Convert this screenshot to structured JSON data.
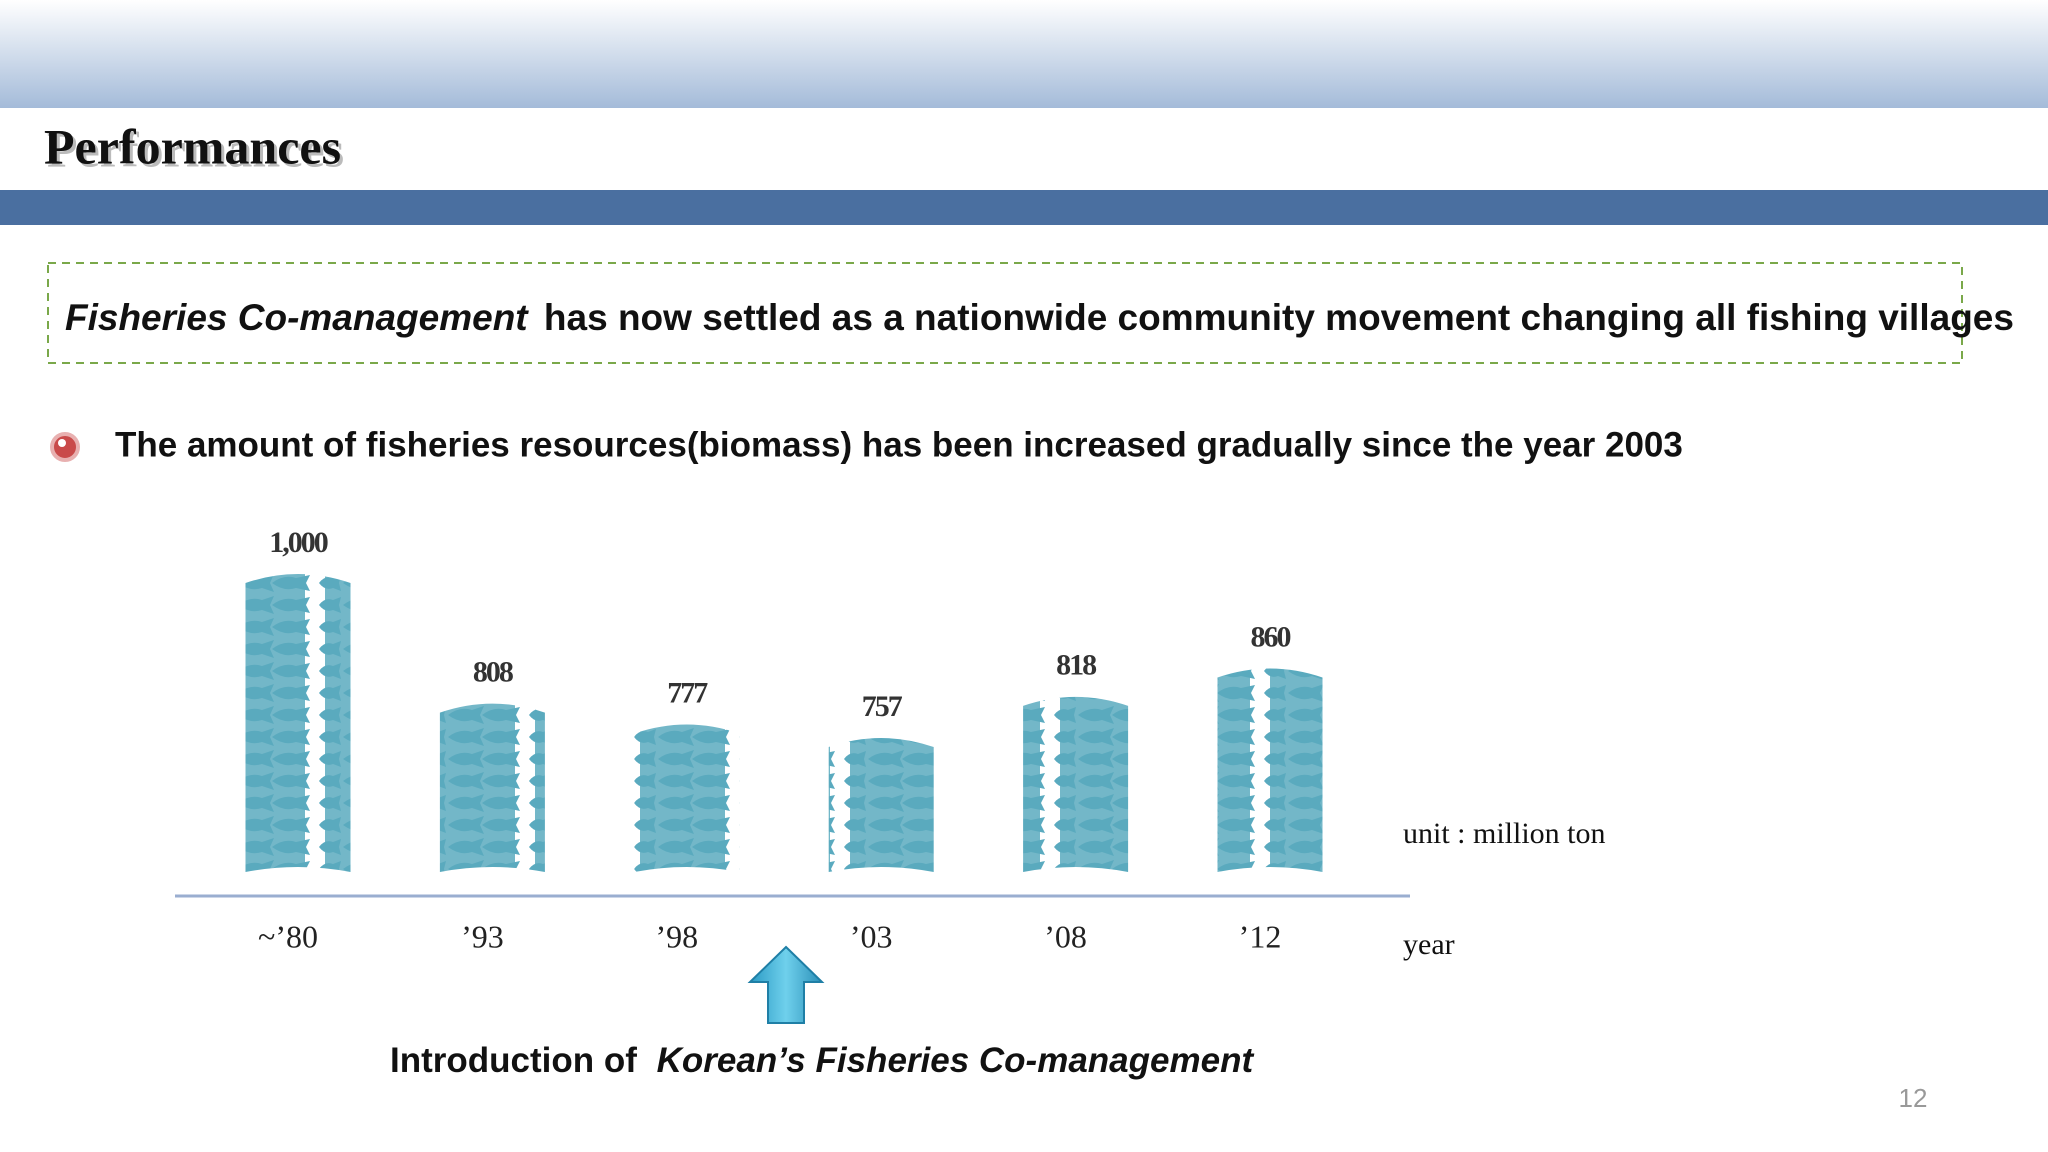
{
  "header": {
    "title": "Performances"
  },
  "banner": {
    "emphasis": "Fisheries Co-management",
    "text": "has now settled as a nationwide community movement changing all fishing villages"
  },
  "bullet": "The amount of fisheries resources(biomass) has been increased gradually since the year 2003",
  "chart_data": {
    "type": "bar",
    "categories": [
      "~’80",
      "’93",
      "’98",
      "’03",
      "’08",
      "’12"
    ],
    "values": [
      1000,
      808,
      777,
      757,
      818,
      860
    ],
    "value_labels": [
      "1,000",
      "808",
      "777",
      "757",
      "818",
      "860"
    ],
    "color": "#5aaabf",
    "ylim": [
      560,
      1100
    ],
    "ylabel": "unit : million ton",
    "xlabel": "year"
  },
  "annotation": {
    "prefix": "Introduction of",
    "emphasis": "Korean’s Fisheries Co-management"
  },
  "page_number": "12"
}
